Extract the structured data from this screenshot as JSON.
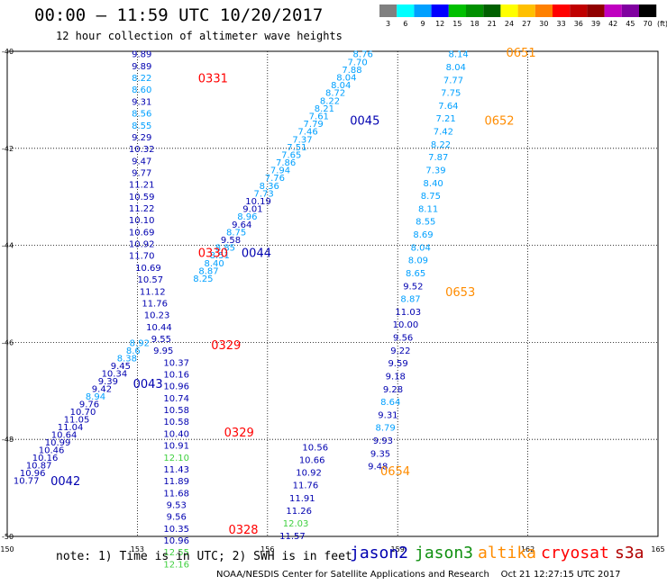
{
  "header": {
    "title": "00:00 – 11:59 UTC 10/20/2017",
    "subtitle": "12 hour collection of altimeter wave heights"
  },
  "colorbar": {
    "colors": [
      "#808080",
      "#00ffff",
      "#00a0ff",
      "#0000ff",
      "#00c000",
      "#009000",
      "#006000",
      "#ffff00",
      "#ffc000",
      "#ff8000",
      "#ff0000",
      "#c00000",
      "#900000",
      "#c000c0",
      "#8000a0",
      "#000000"
    ],
    "ticks": [
      "3",
      "6",
      "9",
      "12",
      "15",
      "18",
      "21",
      "24",
      "27",
      "30",
      "33",
      "36",
      "39",
      "42",
      "45",
      "70"
    ],
    "unit": "(ft)"
  },
  "axes": {
    "lon_labels": [
      "150",
      "153",
      "156",
      "159",
      "162",
      "165"
    ],
    "lat_labels": [
      "-40",
      "-42",
      "-44",
      "-46",
      "-48",
      "-50"
    ]
  },
  "colors": {
    "jason2": "#0000b0",
    "jason3": "#109010",
    "altika": "#ff8c00",
    "cryosat": "#ff0000",
    "s3a": "#b00000"
  },
  "tracks": [
    {
      "sat": "jason2",
      "lon": 153.0,
      "lat": -40.0,
      "lat_step": -0.0988,
      "color_set": [
        "#00a0ff",
        "#0000b0"
      ],
      "values": [
        "9.89",
        "9.89",
        "8.22",
        "8.60",
        "9.31",
        "8.56",
        "8.55",
        "9.29",
        "10.32",
        "9.47",
        "9.77",
        "11.21",
        "10.59",
        "11.22",
        "10.10",
        "10.69",
        "10.92",
        "11.70",
        "10.69",
        "10.57",
        "11.12",
        "11.76",
        "10.23",
        "10.44",
        "9.55",
        "9.95",
        "10.37",
        "10.16",
        "10.96",
        "10.74",
        "10.58",
        "10.58",
        "10.40",
        "10.91",
        "12.10",
        "11.43",
        "11.89",
        "11.68",
        "9.53",
        "9.56",
        "10.35",
        "10.96",
        "12.55",
        "12.16"
      ],
      "colors_idx": [
        1,
        1,
        0,
        0,
        1,
        0,
        0,
        1,
        1,
        1,
        1,
        1,
        1,
        1,
        1,
        1,
        1,
        1,
        1,
        1,
        1,
        1,
        1,
        1,
        1,
        1,
        1,
        1,
        1,
        1,
        1,
        1,
        1,
        1,
        2,
        1,
        1,
        1,
        1,
        1,
        1,
        1,
        2,
        2
      ]
    },
    {
      "sat": "altika",
      "lon": 156.9,
      "lat": -48.9,
      "lat_step": -0.0988,
      "values": [
        "10.56",
        "10.66",
        "10.92",
        "11.76",
        "11.91",
        "11.26",
        "12.03",
        "11.57"
      ],
      "colors_idx": [
        1,
        1,
        1,
        1,
        1,
        1,
        2,
        1
      ]
    }
  ],
  "track_labels": [
    {
      "text": "0331",
      "lon": 154.4,
      "lat": -40.55,
      "color": "#ff0000"
    },
    {
      "text": "0045",
      "lon": 157.9,
      "lat": -41.42,
      "color": "#0000b0"
    },
    {
      "text": "0652",
      "lon": 161.0,
      "lat": -41.42,
      "color": "#ff8c00"
    },
    {
      "text": "0651",
      "lon": 161.5,
      "lat": -40.02,
      "color": "#ff8c00"
    },
    {
      "text": "0330",
      "lon": 154.4,
      "lat": -44.15,
      "color": "#ff0000"
    },
    {
      "text": "0044",
      "lon": 155.4,
      "lat": -44.15,
      "color": "#0000b0"
    },
    {
      "text": "0653",
      "lon": 160.1,
      "lat": -44.95,
      "color": "#ff8c00"
    },
    {
      "text": "0329",
      "lon": 154.7,
      "lat": -46.05,
      "color": "#ff0000"
    },
    {
      "text": "0043",
      "lon": 152.9,
      "lat": -46.85,
      "color": "#0000b0"
    },
    {
      "text": "0329",
      "lon": 155.0,
      "lat": -47.85,
      "color": "#ff0000"
    },
    {
      "text": "0654",
      "lon": 158.6,
      "lat": -48.65,
      "color": "#ff8c00"
    },
    {
      "text": "0042",
      "lon": 151.0,
      "lat": -48.85,
      "color": "#0000b0"
    },
    {
      "text": "0328",
      "lon": 155.1,
      "lat": -49.85,
      "color": "#ff0000"
    }
  ],
  "footer": {
    "note": "note: 1) Time is in UTC; 2) SWH is in feet",
    "satellites": [
      {
        "label": "jason2",
        "color": "#0000b0"
      },
      {
        "label": "jason3",
        "color": "#109010"
      },
      {
        "label": "altika",
        "color": "#ff8c00"
      },
      {
        "label": "cryosat",
        "color": "#ff0000"
      },
      {
        "label": "s3a",
        "color": "#b00000"
      }
    ],
    "credit": "NOAA/NESDIS Center for Satellite Applications and Research    Oct 21 12:27:15 UTC 2017"
  },
  "diag_tracks": {
    "jason2_asc_a": {
      "values": [
        "8.76",
        "7.70",
        "7.88",
        "8.04",
        "8.04",
        "8.72",
        "8.22",
        "8.21",
        "7.61",
        "7.79",
        "7.46",
        "7.37",
        "7.51",
        "7.65",
        "7.86",
        "7.94",
        "7.76",
        "8.36",
        "7.73",
        "10.19",
        "9.01",
        "8.96",
        "9.64",
        "8.75",
        "9.58",
        "8.85",
        "8.51",
        "8.40",
        "8.87",
        "8.25"
      ]
    },
    "jason2_asc_b": {
      "values": [
        "8.92",
        "8.6",
        "8.38",
        "9.45",
        "10.34",
        "9.39",
        "9.42",
        "8.94",
        "9.76",
        "10.70",
        "11.05",
        "11.04",
        "10.64",
        "10.99",
        "10.46",
        "10.16",
        "10.87",
        "10.96",
        "10.77"
      ]
    },
    "altika_a": {
      "values": [
        "8.14",
        "8.04",
        "7.77",
        "7.75",
        "7.64",
        "7.21",
        "7.42",
        "8.22",
        "7.87",
        "7.39",
        "8.40",
        "8.75",
        "8.11",
        "8.55",
        "8.69",
        "8.04",
        "8.09",
        "8.65",
        "9.52",
        "8.87",
        "11.03",
        "10.00",
        "9.56",
        "9.22",
        "9.59",
        "9.18",
        "9.28",
        "8.64",
        "9.31",
        "8.79",
        "9.93",
        "9.35",
        "9.48"
      ]
    }
  }
}
